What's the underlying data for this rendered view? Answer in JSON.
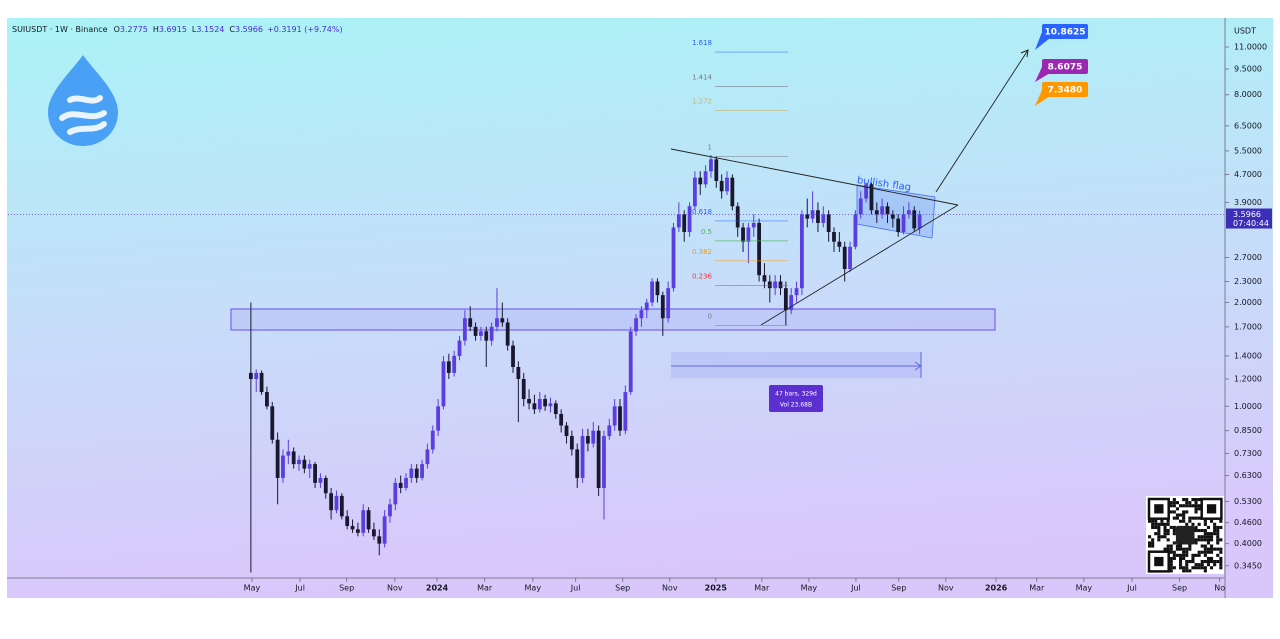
{
  "chart_data": {
    "type": "candlestick",
    "header": {
      "symbol": "SUIUSDT · 1W · Binance",
      "ohlc": [
        {
          "label": "O",
          "value": 3.2775
        },
        {
          "label": "H",
          "value": 3.6915
        },
        {
          "label": "L",
          "value": 3.1524
        },
        {
          "label": "C",
          "value": 3.5966
        }
      ],
      "change": "+0.3191 (+9.74%)"
    },
    "currency": "USDT",
    "log_scale": true,
    "up_color": "#5a3ee0",
    "down_color": "#1a1830",
    "ylim": [
      0.318,
      13.35
    ],
    "yticks": [
      {
        "value": 11,
        "label": "11.0000"
      },
      {
        "value": 9.5,
        "label": "9.5000"
      },
      {
        "value": 8,
        "label": "8.0000"
      },
      {
        "value": 6.5,
        "label": "6.5000"
      },
      {
        "value": 5.5,
        "label": "5.5000"
      },
      {
        "value": 4.7,
        "label": "4.7000"
      },
      {
        "value": 3.9,
        "label": "3.9000"
      },
      {
        "value": 2.7,
        "label": "2.7000"
      },
      {
        "value": 2.3,
        "label": "2.3000"
      },
      {
        "value": 2,
        "label": "2.0000"
      },
      {
        "value": 1.7,
        "label": "1.7000"
      },
      {
        "value": 1.4,
        "label": "1.4000"
      },
      {
        "value": 1.2,
        "label": "1.2000"
      },
      {
        "value": 1,
        "label": "1.0000"
      },
      {
        "value": 0.85,
        "label": "0.8500"
      },
      {
        "value": 0.73,
        "label": "0.7300"
      },
      {
        "value": 0.63,
        "label": "0.6300"
      },
      {
        "value": 0.53,
        "label": "0.5300"
      },
      {
        "value": 0.46,
        "label": "0.4600"
      },
      {
        "value": 0.4,
        "label": "0.4000"
      },
      {
        "value": 0.345,
        "label": "0.3450"
      }
    ],
    "xlim": [
      -45.4,
      181.9
    ],
    "xticks": [
      {
        "value": 0.2,
        "label": "May"
      },
      {
        "value": 9.2,
        "label": "Jul"
      },
      {
        "value": 17.9,
        "label": "Sep"
      },
      {
        "value": 26.9,
        "label": "Nov"
      },
      {
        "value": 34.8,
        "label": "2024"
      },
      {
        "value": 43.7,
        "label": "Mar"
      },
      {
        "value": 52.7,
        "label": "May"
      },
      {
        "value": 60.7,
        "label": "Jul"
      },
      {
        "value": 69.5,
        "label": "Sep"
      },
      {
        "value": 78.3,
        "label": "Nov"
      },
      {
        "value": 86.9,
        "label": "2025"
      },
      {
        "value": 95.5,
        "label": "Mar"
      },
      {
        "value": 104.3,
        "label": "May"
      },
      {
        "value": 113.1,
        "label": "Jul"
      },
      {
        "value": 121.1,
        "label": "Sep"
      },
      {
        "value": 129.9,
        "label": "Nov"
      },
      {
        "value": 139.3,
        "label": "2026"
      },
      {
        "value": 146.9,
        "label": "Mar"
      },
      {
        "value": 155.7,
        "label": "May"
      },
      {
        "value": 164.7,
        "label": "Jul"
      },
      {
        "value": 173.6,
        "label": "Sep"
      },
      {
        "value": 181.1,
        "label": "No"
      }
    ],
    "last_price": {
      "value": 3.5966,
      "countdown": "07:40:44"
    },
    "ohlc": [
      [
        1.25,
        2.0,
        0.33,
        1.2
      ],
      [
        1.2,
        1.28,
        1.1,
        1.25
      ],
      [
        1.25,
        1.27,
        1.08,
        1.1
      ],
      [
        1.1,
        1.14,
        0.98,
        1.0
      ],
      [
        1.0,
        1.03,
        0.78,
        0.8
      ],
      [
        0.8,
        0.84,
        0.52,
        0.62
      ],
      [
        0.62,
        0.75,
        0.6,
        0.72
      ],
      [
        0.72,
        0.8,
        0.68,
        0.74
      ],
      [
        0.74,
        0.76,
        0.66,
        0.68
      ],
      [
        0.68,
        0.72,
        0.65,
        0.7
      ],
      [
        0.7,
        0.72,
        0.64,
        0.66
      ],
      [
        0.66,
        0.7,
        0.62,
        0.68
      ],
      [
        0.68,
        0.69,
        0.58,
        0.6
      ],
      [
        0.6,
        0.64,
        0.58,
        0.62
      ],
      [
        0.62,
        0.63,
        0.54,
        0.56
      ],
      [
        0.56,
        0.58,
        0.47,
        0.5
      ],
      [
        0.5,
        0.57,
        0.49,
        0.55
      ],
      [
        0.55,
        0.56,
        0.47,
        0.48
      ],
      [
        0.48,
        0.5,
        0.44,
        0.45
      ],
      [
        0.45,
        0.47,
        0.43,
        0.44
      ],
      [
        0.44,
        0.46,
        0.42,
        0.43
      ],
      [
        0.43,
        0.52,
        0.42,
        0.5
      ],
      [
        0.5,
        0.51,
        0.43,
        0.44
      ],
      [
        0.44,
        0.46,
        0.41,
        0.42
      ],
      [
        0.42,
        0.44,
        0.37,
        0.4
      ],
      [
        0.4,
        0.5,
        0.39,
        0.48
      ],
      [
        0.48,
        0.54,
        0.46,
        0.52
      ],
      [
        0.52,
        0.62,
        0.5,
        0.6
      ],
      [
        0.6,
        0.63,
        0.56,
        0.58
      ],
      [
        0.58,
        0.64,
        0.57,
        0.62
      ],
      [
        0.62,
        0.68,
        0.6,
        0.66
      ],
      [
        0.66,
        0.68,
        0.6,
        0.62
      ],
      [
        0.62,
        0.7,
        0.61,
        0.68
      ],
      [
        0.68,
        0.78,
        0.66,
        0.75
      ],
      [
        0.75,
        0.88,
        0.73,
        0.85
      ],
      [
        0.85,
        1.05,
        0.82,
        1.0
      ],
      [
        1.0,
        1.4,
        0.98,
        1.35
      ],
      [
        1.35,
        1.42,
        1.2,
        1.25
      ],
      [
        1.25,
        1.45,
        1.22,
        1.4
      ],
      [
        1.4,
        1.6,
        1.36,
        1.55
      ],
      [
        1.55,
        1.9,
        1.5,
        1.8
      ],
      [
        1.8,
        1.95,
        1.65,
        1.7
      ],
      [
        1.7,
        1.75,
        1.55,
        1.6
      ],
      [
        1.6,
        1.7,
        1.55,
        1.65
      ],
      [
        1.65,
        1.7,
        1.3,
        1.55
      ],
      [
        1.55,
        1.75,
        1.5,
        1.7
      ],
      [
        1.7,
        2.2,
        1.65,
        1.8
      ],
      [
        1.8,
        2.0,
        1.7,
        1.75
      ],
      [
        1.75,
        1.8,
        1.45,
        1.5
      ],
      [
        1.5,
        1.55,
        1.25,
        1.3
      ],
      [
        1.3,
        1.35,
        0.9,
        1.2
      ],
      [
        1.2,
        1.25,
        1.0,
        1.05
      ],
      [
        1.05,
        1.12,
        0.98,
        1.02
      ],
      [
        1.02,
        1.08,
        0.95,
        0.98
      ],
      [
        0.98,
        1.1,
        0.96,
        1.05
      ],
      [
        1.05,
        1.08,
        0.97,
        1.0
      ],
      [
        1.0,
        1.06,
        0.96,
        1.02
      ],
      [
        1.02,
        1.04,
        0.92,
        0.95
      ],
      [
        0.95,
        0.98,
        0.84,
        0.88
      ],
      [
        0.88,
        0.9,
        0.78,
        0.82
      ],
      [
        0.82,
        0.85,
        0.72,
        0.75
      ],
      [
        0.75,
        0.78,
        0.58,
        0.62
      ],
      [
        0.62,
        0.86,
        0.6,
        0.82
      ],
      [
        0.82,
        0.86,
        0.74,
        0.78
      ],
      [
        0.78,
        0.9,
        0.76,
        0.85
      ],
      [
        0.85,
        0.88,
        0.55,
        0.58
      ],
      [
        0.58,
        0.85,
        0.47,
        0.82
      ],
      [
        0.82,
        0.92,
        0.8,
        0.88
      ],
      [
        0.88,
        1.05,
        0.85,
        1.0
      ],
      [
        1.0,
        1.05,
        0.82,
        0.85
      ],
      [
        0.85,
        1.15,
        0.83,
        1.1
      ],
      [
        1.1,
        1.7,
        1.08,
        1.65
      ],
      [
        1.65,
        1.85,
        1.6,
        1.8
      ],
      [
        1.8,
        1.95,
        1.7,
        1.9
      ],
      [
        1.9,
        2.05,
        1.8,
        2.0
      ],
      [
        2.0,
        2.35,
        1.95,
        2.3
      ],
      [
        2.3,
        2.35,
        2.0,
        2.1
      ],
      [
        2.1,
        2.15,
        1.6,
        1.8
      ],
      [
        1.8,
        2.3,
        1.75,
        2.2
      ],
      [
        2.2,
        3.4,
        2.15,
        3.3
      ],
      [
        3.3,
        3.9,
        3.2,
        3.6
      ],
      [
        3.6,
        3.7,
        3.0,
        3.2
      ],
      [
        3.2,
        3.9,
        3.1,
        3.8
      ],
      [
        3.8,
        4.8,
        3.7,
        4.6
      ],
      [
        4.6,
        4.8,
        4.1,
        4.4
      ],
      [
        4.4,
        5.0,
        4.3,
        4.8
      ],
      [
        4.8,
        5.35,
        4.6,
        5.2
      ],
      [
        5.2,
        5.3,
        4.3,
        4.5
      ],
      [
        4.5,
        4.7,
        4.0,
        4.2
      ],
      [
        4.2,
        4.8,
        4.1,
        4.6
      ],
      [
        4.6,
        4.7,
        3.7,
        3.8
      ],
      [
        3.8,
        3.9,
        3.1,
        3.3
      ],
      [
        3.3,
        3.4,
        2.8,
        3.0
      ],
      [
        3.0,
        3.4,
        2.6,
        3.3
      ],
      [
        3.3,
        3.6,
        3.1,
        3.4
      ],
      [
        3.4,
        3.5,
        2.3,
        2.4
      ],
      [
        2.4,
        2.6,
        2.2,
        2.3
      ],
      [
        2.3,
        2.4,
        2.0,
        2.2
      ],
      [
        2.2,
        2.4,
        2.1,
        2.3
      ],
      [
        2.3,
        2.4,
        2.1,
        2.2
      ],
      [
        2.2,
        2.3,
        1.72,
        1.9
      ],
      [
        1.9,
        2.2,
        1.85,
        2.1
      ],
      [
        2.1,
        2.3,
        2.0,
        2.2
      ],
      [
        2.2,
        3.7,
        2.1,
        3.6
      ],
      [
        3.6,
        4.0,
        3.3,
        3.5
      ],
      [
        3.5,
        4.2,
        3.4,
        3.7
      ],
      [
        3.7,
        3.9,
        3.2,
        3.4
      ],
      [
        3.4,
        3.8,
        3.3,
        3.6
      ],
      [
        3.6,
        3.7,
        3.0,
        3.2
      ],
      [
        3.2,
        3.3,
        2.8,
        3.0
      ],
      [
        3.0,
        3.2,
        2.8,
        2.9
      ],
      [
        2.9,
        3.0,
        2.3,
        2.5
      ],
      [
        2.5,
        3.0,
        2.45,
        2.9
      ],
      [
        2.9,
        3.7,
        2.85,
        3.6
      ],
      [
        3.6,
        4.2,
        3.5,
        4.0
      ],
      [
        4.0,
        4.45,
        3.9,
        4.4
      ],
      [
        4.4,
        4.45,
        3.6,
        3.7
      ],
      [
        3.7,
        3.9,
        3.4,
        3.6
      ],
      [
        3.6,
        4.0,
        3.5,
        3.8
      ],
      [
        3.8,
        3.9,
        3.4,
        3.6
      ],
      [
        3.6,
        3.7,
        3.3,
        3.5
      ],
      [
        3.5,
        3.6,
        3.1,
        3.2
      ],
      [
        3.2,
        3.8,
        3.15,
        3.6
      ],
      [
        3.6,
        3.9,
        3.5,
        3.7
      ],
      [
        3.7,
        3.8,
        3.2,
        3.2775
      ],
      [
        3.2775,
        3.6915,
        3.1524,
        3.5966
      ]
    ],
    "fib": {
      "low": 1.717,
      "high": 5.3,
      "levels": [
        1.618,
        1.414,
        1.272,
        1,
        0.618,
        0.5,
        0.382,
        0.236,
        0
      ],
      "colors": [
        "#2962ff",
        "#787b86",
        "#c8b46a",
        "#787b86",
        "#2962ff",
        "#4caf50",
        "#ff9800",
        "#f23645",
        "#787b86"
      ]
    },
    "targets": [
      {
        "value": 10.8625,
        "color": "#2962ff"
      },
      {
        "value": 8.6075,
        "color": "#9c27b0"
      },
      {
        "value": 7.348,
        "label": "7.3480",
        "color": "#ff9800"
      }
    ],
    "pattern_label": "bullish flag",
    "measure": {
      "bars": "47 bars, 329d",
      "volume": "Vol 23.68B"
    }
  }
}
